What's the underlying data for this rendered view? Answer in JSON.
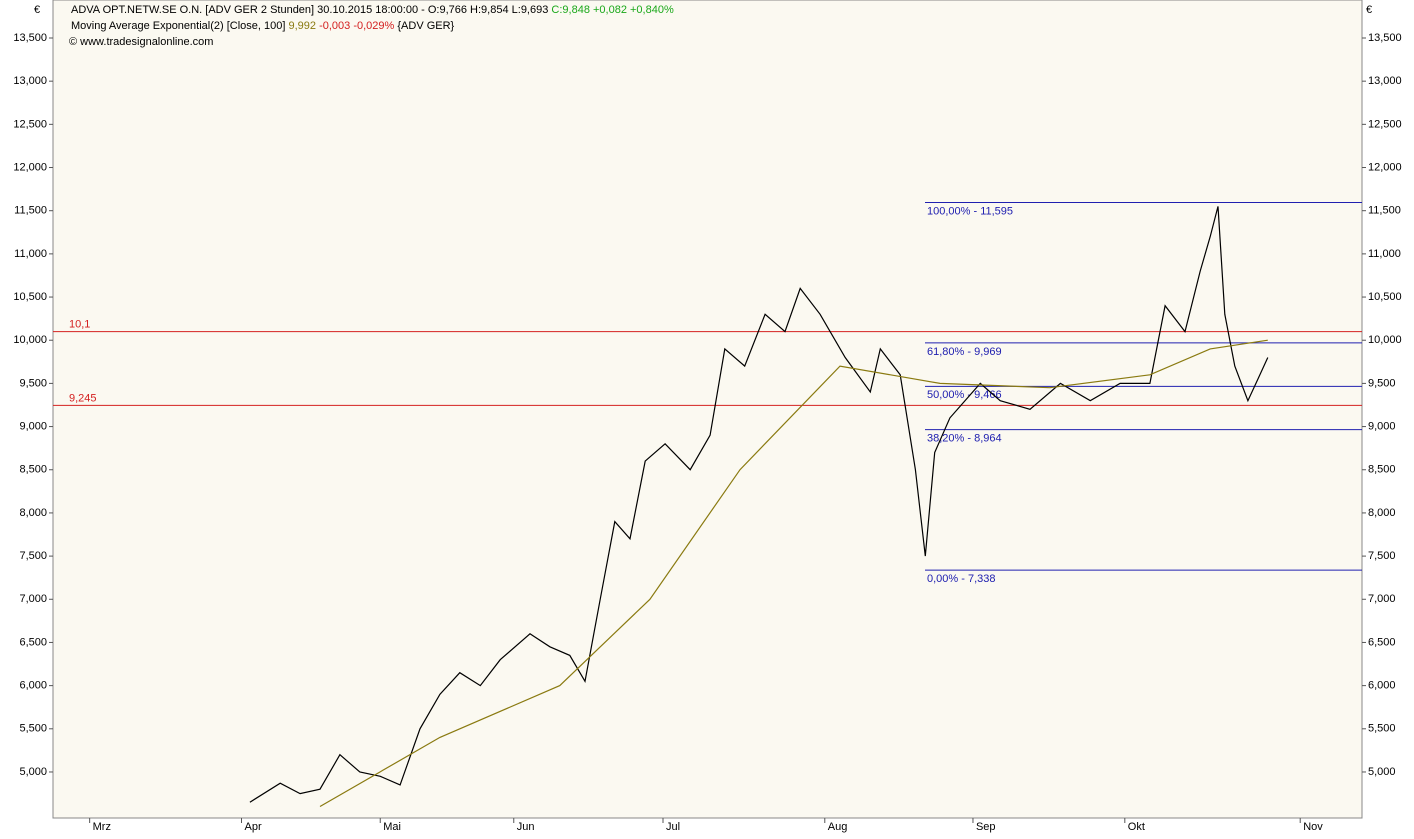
{
  "chart_data": {
    "type": "line",
    "title": "ADVA OPT.NETW.SE O.N. [ADV GER 2 Stunden] 30.10.2015 18:00:00 - O:9,766 H:9,854 L:9,693",
    "title_change": "C:9,848 +0,082 +0,840%",
    "ema_label": "Moving Average Exponential(2) [Close, 100]",
    "ema_value": "9,992",
    "ema_change": "-0,003 -0,029%",
    "ema_source": "{ADV GER}",
    "credit": "© www.tradesignalonline.com",
    "currency": "€",
    "xlim": [
      0,
      250
    ],
    "xticks": [
      {
        "value": 7,
        "label": "Mrz"
      },
      {
        "value": 36,
        "label": "Apr"
      },
      {
        "value": 62.5,
        "label": "Mai"
      },
      {
        "value": 88,
        "label": "Jun"
      },
      {
        "value": 116.5,
        "label": "Jul"
      },
      {
        "value": 147.4,
        "label": "Aug"
      },
      {
        "value": 175.7,
        "label": "Sep"
      },
      {
        "value": 204.7,
        "label": "Okt"
      },
      {
        "value": 238.2,
        "label": "Nov"
      }
    ],
    "ylim": [
      4.467,
      13.94
    ],
    "yticks": [
      {
        "value": 5,
        "label": "5,000"
      },
      {
        "value": 5.5,
        "label": "5,500"
      },
      {
        "value": 6,
        "label": "6,000"
      },
      {
        "value": 6.5,
        "label": "6,500"
      },
      {
        "value": 7,
        "label": "7,000"
      },
      {
        "value": 7.5,
        "label": "7,500"
      },
      {
        "value": 8,
        "label": "8,000"
      },
      {
        "value": 8.5,
        "label": "8,500"
      },
      {
        "value": 9,
        "label": "9,000"
      },
      {
        "value": 9.5,
        "label": "9,500"
      },
      {
        "value": 10,
        "label": "10,000"
      },
      {
        "value": 10.5,
        "label": "10,500"
      },
      {
        "value": 11,
        "label": "11,000"
      },
      {
        "value": 11.5,
        "label": "11,500"
      },
      {
        "value": 12,
        "label": "12,000"
      },
      {
        "value": 12.5,
        "label": "12,500"
      },
      {
        "value": 13,
        "label": "13,000"
      },
      {
        "value": 13.5,
        "label": "13,500"
      }
    ],
    "series": [
      {
        "color": "#000000",
        "x": [
          37.6,
          43.4,
          47.2,
          51,
          54.8,
          58.6,
          62.5,
          66.3,
          70.1,
          73.9,
          77.7,
          81.6,
          85.4,
          91.1,
          94.9,
          98.7,
          101.6,
          104.5,
          107.3,
          110.2,
          113.1,
          116.9,
          121.7,
          125.5,
          128.3,
          132.1,
          136,
          139.8,
          142.7,
          146.5,
          151.3,
          156.1,
          158,
          161.8,
          164.7,
          166.6,
          168.4,
          171.3,
          177.1,
          180.9,
          186.6,
          192.4,
          198.1,
          203.8,
          209.5,
          212.4,
          216.2,
          219.1,
          221,
          222.5,
          223.8,
          225.7,
          228.2,
          230.5,
          232
        ],
        "values": [
          4.65,
          4.87,
          4.75,
          4.8,
          5.2,
          5.0,
          4.95,
          4.85,
          5.5,
          5.9,
          6.15,
          6.0,
          6.3,
          6.6,
          6.45,
          6.35,
          6.05,
          7.0,
          7.9,
          7.7,
          8.6,
          8.8,
          8.5,
          8.9,
          9.9,
          9.7,
          10.3,
          10.1,
          10.6,
          10.3,
          9.8,
          9.4,
          9.9,
          9.6,
          8.5,
          7.5,
          8.7,
          9.1,
          9.5,
          9.3,
          9.2,
          9.5,
          9.3,
          9.5,
          9.5,
          10.4,
          10.1,
          10.8,
          11.2,
          11.55,
          10.3,
          9.7,
          9.3,
          9.6,
          9.8
        ]
      },
      {
        "name": "Moving Average Exponential(2) [Close, 100]",
        "color": "#8a7a10",
        "x": [
          51,
          73.9,
          96.8,
          114,
          131.2,
          150.3,
          169.4,
          190.4,
          209.5,
          221,
          232
        ],
        "values": [
          4.6,
          5.4,
          6.0,
          7.0,
          8.5,
          9.7,
          9.5,
          9.45,
          9.6,
          9.9,
          10.0
        ]
      }
    ],
    "hlines": [
      {
        "value": 10.1,
        "label": "10,1",
        "color": "#d42020"
      },
      {
        "value": 9.245,
        "label": "9,245",
        "color": "#d42020"
      }
    ],
    "fib_levels": [
      {
        "value": 11.595,
        "label": "100,00% - 11,595"
      },
      {
        "value": 9.969,
        "label": "61,80% - 9,969"
      },
      {
        "value": 9.466,
        "label": "50,00% - 9,466"
      },
      {
        "value": 8.964,
        "label": "38,20% - 8,964"
      },
      {
        "value": 7.338,
        "label": "0,00% - 7,338"
      }
    ],
    "fib_color": "#2020b0"
  }
}
